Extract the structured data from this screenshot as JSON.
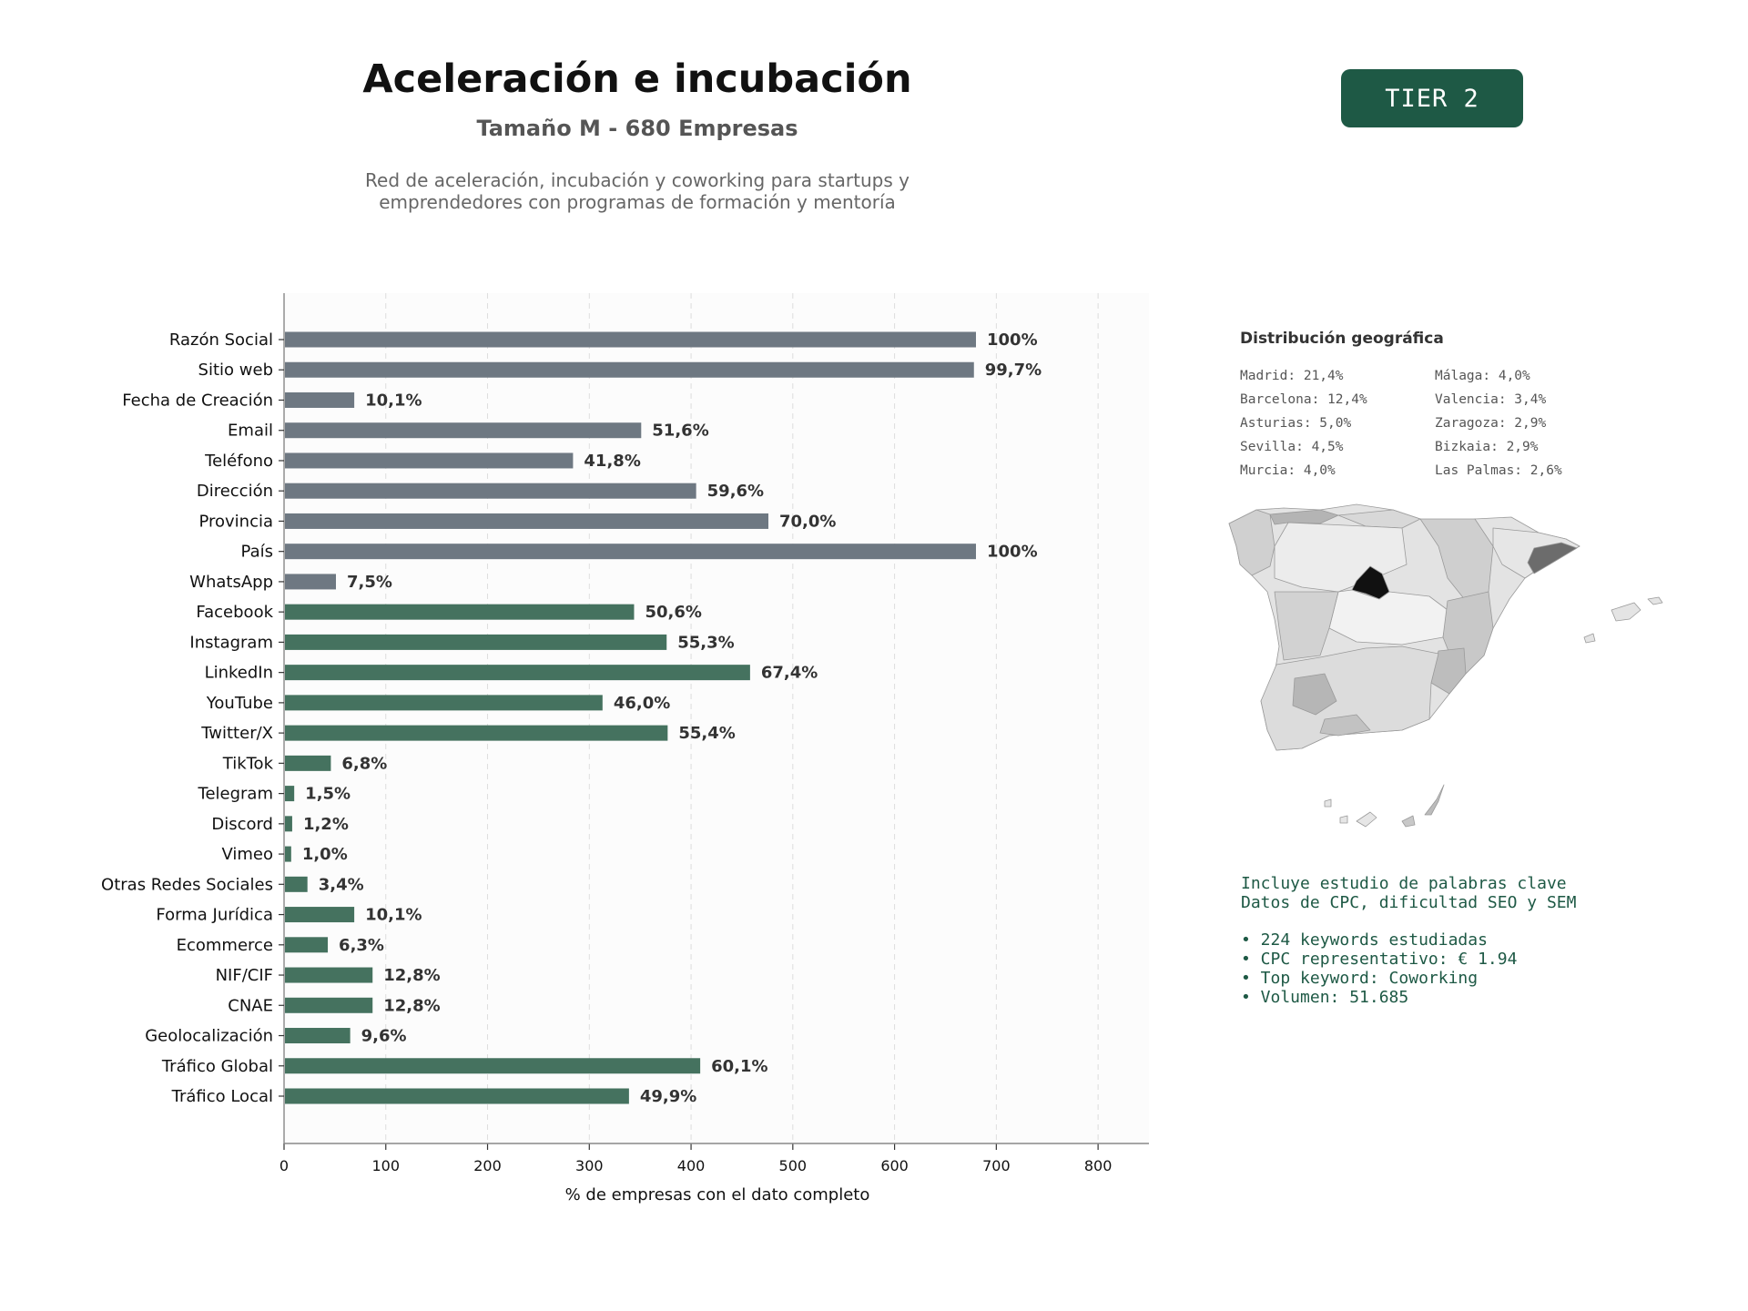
{
  "header": {
    "title": "Aceleración e incubación",
    "subtitle": "Tamaño M - 680 Empresas",
    "description_line1": "Red de aceleración, incubación y coworking para startups y",
    "description_line2": "emprendedores con programas de formación y mentoría",
    "tier": "TIER 2"
  },
  "chart_data": {
    "type": "bar",
    "orientation": "horizontal",
    "xlabel": "% de empresas con el dato completo",
    "ylabel": "",
    "xlim": [
      0,
      850
    ],
    "xticks": [
      0,
      100,
      200,
      300,
      400,
      500,
      600,
      700,
      800
    ],
    "grid": "vertical dashed",
    "colors": {
      "contact": "#6e7882",
      "digital": "#45725f"
    },
    "categories": [
      "Razón Social",
      "Sitio web",
      "Fecha de Creación",
      "Email",
      "Teléfono",
      "Dirección",
      "Provincia",
      "País",
      "WhatsApp",
      "Facebook",
      "Instagram",
      "LinkedIn",
      "YouTube",
      "Twitter/X",
      "TikTok",
      "Telegram",
      "Discord",
      "Vimeo",
      "Otras Redes Sociales",
      "Forma Jurídica",
      "Ecommerce",
      "NIF/CIF",
      "CNAE",
      "Geolocalización",
      "Tráfico Global",
      "Tráfico Local"
    ],
    "values": [
      680,
      678,
      69,
      351,
      284,
      405,
      476,
      680,
      51,
      344,
      376,
      458,
      313,
      377,
      46,
      10,
      8,
      7,
      23,
      69,
      43,
      87,
      87,
      65,
      409,
      339
    ],
    "labels": [
      "100%",
      "99,7%",
      "10,1%",
      "51,6%",
      "41,8%",
      "59,6%",
      "70,0%",
      "100%",
      "7,5%",
      "50,6%",
      "55,3%",
      "67,4%",
      "46,0%",
      "55,4%",
      "6,8%",
      "1,5%",
      "1,2%",
      "1,0%",
      "3,4%",
      "10,1%",
      "6,3%",
      "12,8%",
      "12,8%",
      "9,6%",
      "60,1%",
      "49,9%"
    ],
    "groups": [
      "contact",
      "contact",
      "contact",
      "contact",
      "contact",
      "contact",
      "contact",
      "contact",
      "contact",
      "digital",
      "digital",
      "digital",
      "digital",
      "digital",
      "digital",
      "digital",
      "digital",
      "digital",
      "digital",
      "digital",
      "digital",
      "digital",
      "digital",
      "digital",
      "digital",
      "digital"
    ]
  },
  "geo": {
    "title": "Distribución geográfica",
    "left": [
      "Madrid: 21,4%",
      "Barcelona: 12,4%",
      "Asturias: 5,0%",
      "Sevilla: 4,5%",
      "Murcia: 4,0%"
    ],
    "right": [
      "Málaga: 4,0%",
      "Valencia: 3,4%",
      "Zaragoza: 2,9%",
      "Bizkaia: 2,9%",
      "Las Palmas: 2,6%"
    ]
  },
  "keywords": {
    "line1": "Incluye estudio de palabras clave",
    "line2": "Datos de CPC, dificultad SEO y SEM",
    "bullets": [
      "• 224 keywords estudiadas",
      "• CPC representativo: € 1.94",
      "• Top keyword: Coworking",
      "• Volumen: 51.685"
    ]
  }
}
